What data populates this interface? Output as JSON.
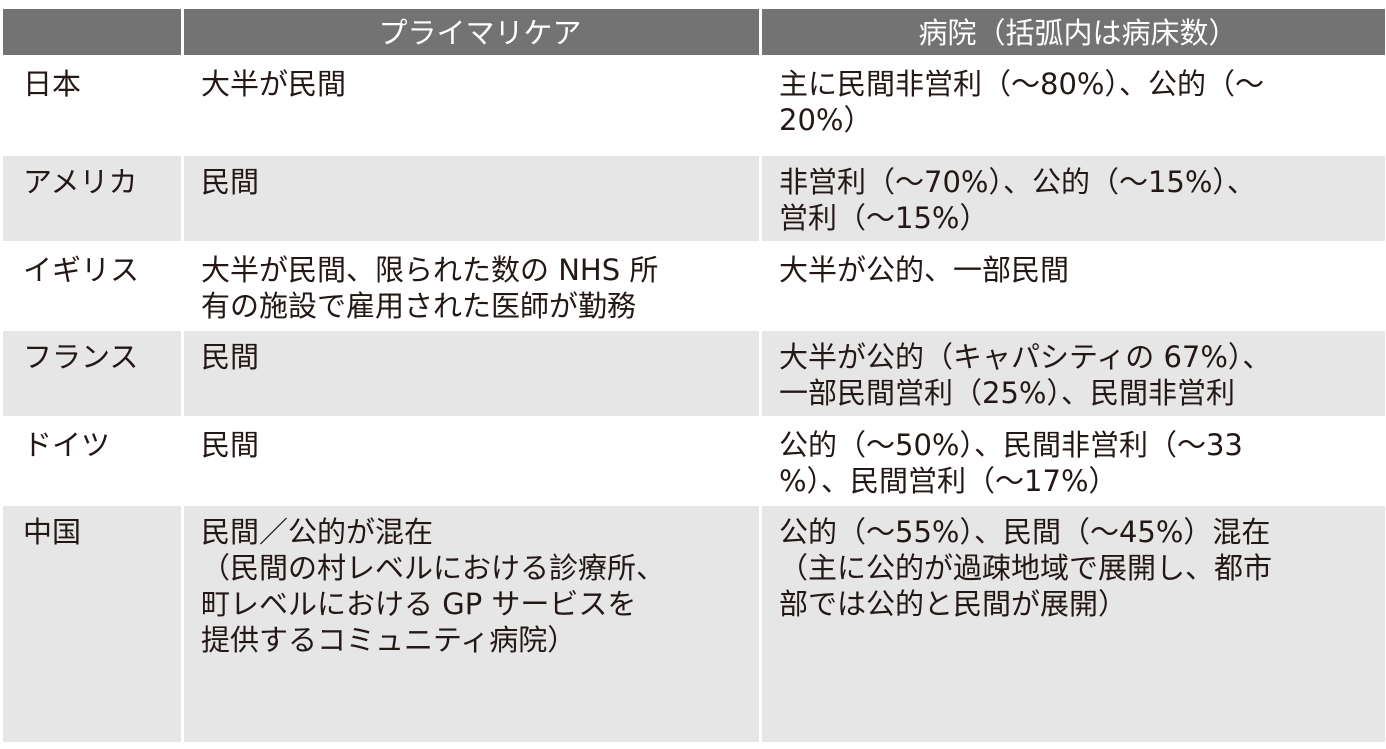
{
  "header": {
    "col1": "",
    "col2": "プライマリケア",
    "col3": "病院（括弧内は病床数）"
  },
  "rows": [
    {
      "country": "日本",
      "primary": [
        "大半が民間"
      ],
      "hospital": [
        "主に民間非営利（〜80%）、公的（〜",
        "20%）"
      ]
    },
    {
      "country": "アメリカ",
      "primary": [
        "民間"
      ],
      "hospital": [
        "非営利（〜70%）、公的（〜15%）、",
        "営利（〜15%）"
      ]
    },
    {
      "country": "イギリス",
      "primary": [
        "大半が民間、限られた数の NHS 所",
        "有の施設で雇用された医師が勤務"
      ],
      "hospital": [
        "大半が公的、一部民間"
      ]
    },
    {
      "country": "フランス",
      "primary": [
        "民間"
      ],
      "hospital": [
        "大半が公的（キャパシティの 67%）、",
        "一部民間営利（25%）、民間非営利"
      ]
    },
    {
      "country": "ドイツ",
      "primary": [
        "民間"
      ],
      "hospital": [
        "公的（〜50%）、民間非営利（〜33",
        "%）、民間営利（〜17%）"
      ]
    },
    {
      "country": "中国",
      "primary": [
        "民間／公的が混在",
        "（民間の村レベルにおける診療所、",
        "町レベルにおける GP サービスを",
        "提供するコミュニティ病院）"
      ],
      "hospital": [
        "公的（〜55%）、民間（〜45%）混在",
        "（主に公的が過疎地域で展開し、都市",
        "部では公的と民間が展開）"
      ]
    }
  ],
  "colors": {
    "header_bg": "#737373",
    "alt_row_bg": "#e6e6e6",
    "text": "#231815"
  }
}
